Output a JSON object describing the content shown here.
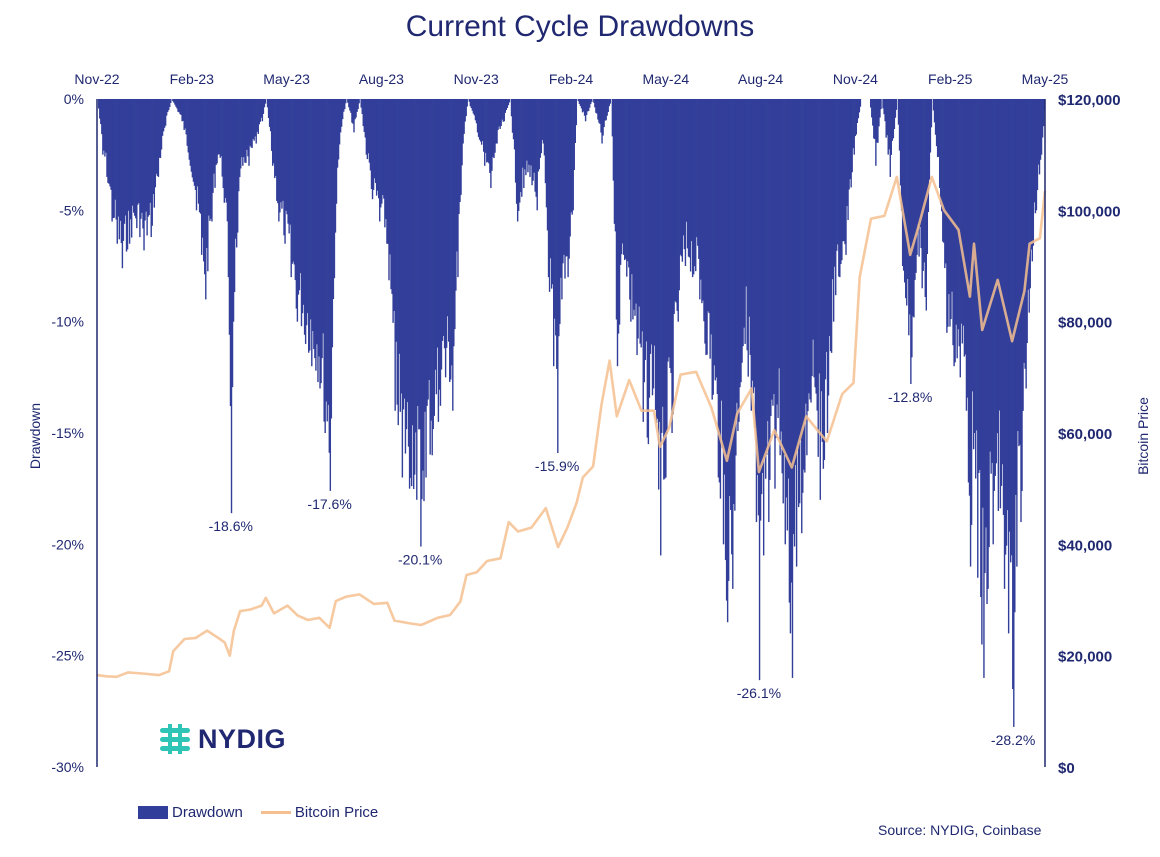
{
  "chart_data": {
    "type": "bar",
    "title": "Current Cycle Drawdowns",
    "x_ticks": [
      "Nov-22",
      "Feb-23",
      "May-23",
      "Aug-23",
      "Nov-23",
      "Feb-24",
      "May-24",
      "Aug-24",
      "Nov-24",
      "Feb-25",
      "May-25"
    ],
    "y_left": {
      "label": "Drawdown",
      "ticks": [
        "0%",
        "-5%",
        "-10%",
        "-15%",
        "-20%",
        "-25%",
        "-30%"
      ],
      "range": [
        -30,
        0
      ],
      "unit": "%"
    },
    "y_right": {
      "label": "Bitcoin Price",
      "ticks": [
        "$0",
        "$20,000",
        "$40,000",
        "$60,000",
        "$80,000",
        "$100,000",
        "$120,000"
      ],
      "range": [
        0,
        120000
      ],
      "unit": "USD"
    },
    "x_range": [
      "2022-11-01",
      "2025-05-10"
    ],
    "series": [
      {
        "name": "Drawdown",
        "kind": "bar",
        "color": "#323f9a",
        "points": [
          [
            "2022-11-01",
            0
          ],
          [
            "2022-11-06",
            -2.5
          ],
          [
            "2022-11-10",
            -3.5
          ],
          [
            "2022-11-15",
            -5.5
          ],
          [
            "2022-11-20",
            -6.5
          ],
          [
            "2022-11-25",
            -7.6
          ],
          [
            "2022-12-02",
            -6.5
          ],
          [
            "2022-12-09",
            -5.8
          ],
          [
            "2022-12-16",
            -6.8
          ],
          [
            "2022-12-23",
            -6.2
          ],
          [
            "2022-12-30",
            -3.5
          ],
          [
            "2023-01-06",
            -1.2
          ],
          [
            "2023-01-12",
            0
          ],
          [
            "2023-01-22",
            -1.0
          ],
          [
            "2023-01-30",
            -3.0
          ],
          [
            "2023-02-05",
            -5.0
          ],
          [
            "2023-02-10",
            -7.0
          ],
          [
            "2023-02-14",
            -9.0
          ],
          [
            "2023-02-20",
            -5.5
          ],
          [
            "2023-02-26",
            -2.5
          ],
          [
            "2023-03-03",
            -4.0
          ],
          [
            "2023-03-08",
            -8.0
          ],
          [
            "2023-03-11",
            -18.6
          ],
          [
            "2023-03-13",
            -10.0
          ],
          [
            "2023-03-17",
            -6.0
          ],
          [
            "2023-03-22",
            -3.0
          ],
          [
            "2023-03-28",
            -3.0
          ],
          [
            "2023-04-04",
            -2.0
          ],
          [
            "2023-04-10",
            -1.0
          ],
          [
            "2023-04-14",
            0
          ],
          [
            "2023-04-20",
            -3.0
          ],
          [
            "2023-04-26",
            -5.5
          ],
          [
            "2023-05-02",
            -6.5
          ],
          [
            "2023-05-08",
            -8.0
          ],
          [
            "2023-05-14",
            -10.0
          ],
          [
            "2023-05-22",
            -11.0
          ],
          [
            "2023-05-28",
            -12.0
          ],
          [
            "2023-06-05",
            -13.0
          ],
          [
            "2023-06-10",
            -15.0
          ],
          [
            "2023-06-15",
            -17.6
          ],
          [
            "2023-06-20",
            -6.0
          ],
          [
            "2023-06-25",
            -1.5
          ],
          [
            "2023-07-01",
            0
          ],
          [
            "2023-07-08",
            -1.5
          ],
          [
            "2023-07-14",
            0
          ],
          [
            "2023-07-20",
            -2.5
          ],
          [
            "2023-07-26",
            -4.5
          ],
          [
            "2023-08-02",
            -5.5
          ],
          [
            "2023-08-09",
            -6.5
          ],
          [
            "2023-08-17",
            -14.0
          ],
          [
            "2023-08-24",
            -17.0
          ],
          [
            "2023-08-31",
            -17.5
          ],
          [
            "2023-09-07",
            -18.0
          ],
          [
            "2023-09-11",
            -20.1
          ],
          [
            "2023-09-16",
            -17.0
          ],
          [
            "2023-09-22",
            -16.0
          ],
          [
            "2023-09-28",
            -14.5
          ],
          [
            "2023-10-05",
            -12.5
          ],
          [
            "2023-10-12",
            -14.0
          ],
          [
            "2023-10-17",
            -8.0
          ],
          [
            "2023-10-22",
            -2.0
          ],
          [
            "2023-10-27",
            0
          ],
          [
            "2023-11-05",
            -1.5
          ],
          [
            "2023-11-12",
            -3.0
          ],
          [
            "2023-11-18",
            -4.0
          ],
          [
            "2023-11-24",
            -2.0
          ],
          [
            "2023-12-01",
            -1.0
          ],
          [
            "2023-12-07",
            0
          ],
          [
            "2023-12-14",
            -5.5
          ],
          [
            "2023-12-20",
            -4.0
          ],
          [
            "2023-12-26",
            -3.5
          ],
          [
            "2024-01-02",
            -5.0
          ],
          [
            "2024-01-08",
            -2.0
          ],
          [
            "2024-01-13",
            -8.0
          ],
          [
            "2024-01-18",
            -12.0
          ],
          [
            "2024-01-22",
            -15.9
          ],
          [
            "2024-01-26",
            -9.0
          ],
          [
            "2024-02-01",
            -8.0
          ],
          [
            "2024-02-06",
            -5.0
          ],
          [
            "2024-02-10",
            0
          ],
          [
            "2024-02-18",
            -1.0
          ],
          [
            "2024-02-25",
            0
          ],
          [
            "2024-03-05",
            -2.0
          ],
          [
            "2024-03-14",
            0
          ],
          [
            "2024-03-20",
            -12.0
          ],
          [
            "2024-03-26",
            -7.0
          ],
          [
            "2024-04-02",
            -10.0
          ],
          [
            "2024-04-08",
            -11.5
          ],
          [
            "2024-04-14",
            -14.5
          ],
          [
            "2024-04-19",
            -15.5
          ],
          [
            "2024-04-24",
            -13.0
          ],
          [
            "2024-05-01",
            -20.5
          ],
          [
            "2024-05-06",
            -17.0
          ],
          [
            "2024-05-12",
            -15.0
          ],
          [
            "2024-05-18",
            -10.0
          ],
          [
            "2024-05-25",
            -7.5
          ],
          [
            "2024-06-01",
            -8.0
          ],
          [
            "2024-06-08",
            -9.0
          ],
          [
            "2024-06-14",
            -11.5
          ],
          [
            "2024-06-20",
            -13.5
          ],
          [
            "2024-06-26",
            -17.0
          ],
          [
            "2024-07-01",
            -20.0
          ],
          [
            "2024-07-05",
            -23.5
          ],
          [
            "2024-07-10",
            -22.0
          ],
          [
            "2024-07-16",
            -14.5
          ],
          [
            "2024-07-22",
            -11.0
          ],
          [
            "2024-07-28",
            -14.0
          ],
          [
            "2024-08-02",
            -19.0
          ],
          [
            "2024-08-05",
            -26.1
          ],
          [
            "2024-08-09",
            -20.5
          ],
          [
            "2024-08-14",
            -19.0
          ],
          [
            "2024-08-20",
            -17.5
          ],
          [
            "2024-08-25",
            -16.0
          ],
          [
            "2024-08-30",
            -20.0
          ],
          [
            "2024-09-04",
            -24.0
          ],
          [
            "2024-09-06",
            -26.0
          ],
          [
            "2024-09-10",
            -21.0
          ],
          [
            "2024-09-15",
            -19.5
          ],
          [
            "2024-09-20",
            -16.0
          ],
          [
            "2024-09-27",
            -12.5
          ],
          [
            "2024-10-03",
            -18.0
          ],
          [
            "2024-10-10",
            -15.0
          ],
          [
            "2024-10-16",
            -10.0
          ],
          [
            "2024-10-22",
            -8.0
          ],
          [
            "2024-10-28",
            -7.0
          ],
          [
            "2024-11-05",
            -2.5
          ],
          [
            "2024-11-12",
            0
          ],
          [
            "2024-11-20",
            0
          ],
          [
            "2024-11-26",
            -3.0
          ],
          [
            "2024-12-02",
            0
          ],
          [
            "2024-12-10",
            -3.5
          ],
          [
            "2024-12-17",
            0
          ],
          [
            "2024-12-22",
            -7.5
          ],
          [
            "2024-12-30",
            -12.8
          ],
          [
            "2025-01-05",
            -7.0
          ],
          [
            "2025-01-10",
            -8.5
          ],
          [
            "2025-01-14",
            -9.5
          ],
          [
            "2025-01-20",
            0
          ],
          [
            "2025-01-27",
            -4.0
          ],
          [
            "2025-02-03",
            -10.5
          ],
          [
            "2025-02-10",
            -12.0
          ],
          [
            "2025-02-16",
            -12.5
          ],
          [
            "2025-02-22",
            -14.0
          ],
          [
            "2025-02-26",
            -21.0
          ],
          [
            "2025-03-02",
            -15.0
          ],
          [
            "2025-03-05",
            -21.5
          ],
          [
            "2025-03-09",
            -24.5
          ],
          [
            "2025-03-11",
            -26.0
          ],
          [
            "2025-03-15",
            -22.0
          ],
          [
            "2025-03-20",
            -20.0
          ],
          [
            "2025-03-25",
            -18.5
          ],
          [
            "2025-03-31",
            -22.0
          ],
          [
            "2025-04-04",
            -24.0
          ],
          [
            "2025-04-08",
            -26.5
          ],
          [
            "2025-04-09",
            -28.2
          ],
          [
            "2025-04-12",
            -21.0
          ],
          [
            "2025-04-16",
            -19.0
          ],
          [
            "2025-04-21",
            -13.0
          ],
          [
            "2025-04-25",
            -8.5
          ],
          [
            "2025-05-01",
            -5.0
          ],
          [
            "2025-05-06",
            -2.5
          ],
          [
            "2025-05-10",
            0
          ]
        ]
      },
      {
        "name": "Bitcoin Price",
        "kind": "line",
        "color": "#f5bf8f",
        "points": [
          [
            "2022-11-01",
            16500
          ],
          [
            "2022-11-10",
            16300
          ],
          [
            "2022-11-20",
            16200
          ],
          [
            "2022-12-01",
            17000
          ],
          [
            "2022-12-15",
            16800
          ],
          [
            "2022-12-31",
            16500
          ],
          [
            "2023-01-10",
            17200
          ],
          [
            "2023-01-14",
            20800
          ],
          [
            "2023-01-25",
            23000
          ],
          [
            "2023-02-05",
            23200
          ],
          [
            "2023-02-16",
            24500
          ],
          [
            "2023-02-25",
            23400
          ],
          [
            "2023-03-05",
            22400
          ],
          [
            "2023-03-10",
            20000
          ],
          [
            "2023-03-14",
            24500
          ],
          [
            "2023-03-20",
            28000
          ],
          [
            "2023-03-30",
            28300
          ],
          [
            "2023-04-10",
            29000
          ],
          [
            "2023-04-14",
            30400
          ],
          [
            "2023-04-22",
            27600
          ],
          [
            "2023-05-05",
            29000
          ],
          [
            "2023-05-15",
            27200
          ],
          [
            "2023-05-25",
            26400
          ],
          [
            "2023-06-05",
            26800
          ],
          [
            "2023-06-15",
            25000
          ],
          [
            "2023-06-21",
            29800
          ],
          [
            "2023-07-01",
            30600
          ],
          [
            "2023-07-14",
            31000
          ],
          [
            "2023-07-28",
            29300
          ],
          [
            "2023-08-10",
            29500
          ],
          [
            "2023-08-17",
            26300
          ],
          [
            "2023-09-01",
            25800
          ],
          [
            "2023-09-12",
            25500
          ],
          [
            "2023-09-28",
            26800
          ],
          [
            "2023-10-10",
            27300
          ],
          [
            "2023-10-20",
            29700
          ],
          [
            "2023-10-26",
            34500
          ],
          [
            "2023-11-05",
            35000
          ],
          [
            "2023-11-15",
            37000
          ],
          [
            "2023-11-28",
            37500
          ],
          [
            "2023-12-06",
            44000
          ],
          [
            "2023-12-15",
            42300
          ],
          [
            "2023-12-28",
            43000
          ],
          [
            "2024-01-11",
            46500
          ],
          [
            "2024-01-23",
            39500
          ],
          [
            "2024-02-01",
            43000
          ],
          [
            "2024-02-10",
            47500
          ],
          [
            "2024-02-16",
            52000
          ],
          [
            "2024-02-26",
            54000
          ],
          [
            "2024-03-05",
            65000
          ],
          [
            "2024-03-13",
            73000
          ],
          [
            "2024-03-20",
            63000
          ],
          [
            "2024-04-01",
            69500
          ],
          [
            "2024-04-13",
            64000
          ],
          [
            "2024-04-25",
            64000
          ],
          [
            "2024-05-01",
            57500
          ],
          [
            "2024-05-10",
            61000
          ],
          [
            "2024-05-21",
            70500
          ],
          [
            "2024-06-05",
            71000
          ],
          [
            "2024-06-20",
            64500
          ],
          [
            "2024-07-05",
            55000
          ],
          [
            "2024-07-15",
            63500
          ],
          [
            "2024-07-29",
            68000
          ],
          [
            "2024-08-05",
            53000
          ],
          [
            "2024-08-20",
            60500
          ],
          [
            "2024-09-06",
            53800
          ],
          [
            "2024-09-20",
            63000
          ],
          [
            "2024-10-10",
            58500
          ],
          [
            "2024-10-25",
            67000
          ],
          [
            "2024-11-05",
            69000
          ],
          [
            "2024-11-11",
            88000
          ],
          [
            "2024-11-22",
            98500
          ],
          [
            "2024-12-05",
            99000
          ],
          [
            "2024-12-17",
            106000
          ],
          [
            "2024-12-30",
            92000
          ],
          [
            "2025-01-07",
            97000
          ],
          [
            "2025-01-20",
            106000
          ],
          [
            "2025-02-01",
            100000
          ],
          [
            "2025-02-15",
            96500
          ],
          [
            "2025-02-26",
            84500
          ],
          [
            "2025-03-02",
            94000
          ],
          [
            "2025-03-10",
            78500
          ],
          [
            "2025-03-25",
            87500
          ],
          [
            "2025-04-08",
            76500
          ],
          [
            "2025-04-20",
            85500
          ],
          [
            "2025-04-25",
            94000
          ],
          [
            "2025-05-05",
            95000
          ],
          [
            "2025-05-10",
            103500
          ]
        ]
      }
    ],
    "annotations": [
      {
        "text": "-18.6%",
        "date": "2023-03-11",
        "value": -18.6
      },
      {
        "text": "-17.6%",
        "date": "2023-06-15",
        "value": -17.6
      },
      {
        "text": "-20.1%",
        "date": "2023-09-11",
        "value": -20.1
      },
      {
        "text": "-15.9%",
        "date": "2024-01-22",
        "value": -15.9
      },
      {
        "text": "-26.1%",
        "date": "2024-08-05",
        "value": -26.1
      },
      {
        "text": "-12.8%",
        "date": "2024-12-30",
        "value": -12.8
      },
      {
        "text": "-28.2%",
        "date": "2025-04-09",
        "value": -28.2
      }
    ],
    "legend": {
      "position": "bottom-left",
      "items": [
        "Drawdown",
        "Bitcoin Price"
      ]
    },
    "grid": false
  },
  "footer": {
    "source": "Source: NYDIG, Coinbase",
    "logo_text": "NYDIG"
  }
}
